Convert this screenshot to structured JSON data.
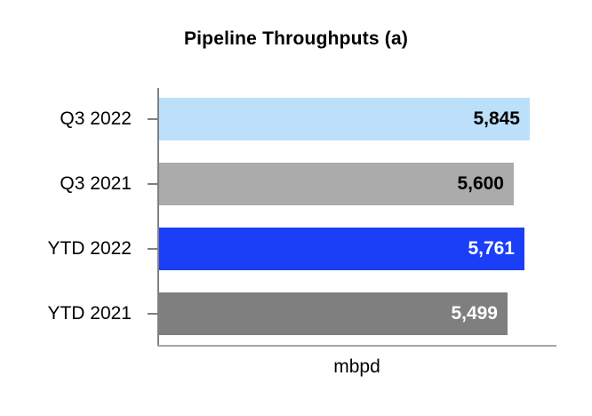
{
  "chart_data": {
    "type": "bar",
    "orientation": "horizontal",
    "title": "Pipeline Throughputs (a)",
    "categories": [
      "Q3 2022",
      "Q3 2021",
      "YTD 2022",
      "YTD 2021"
    ],
    "values": [
      5845,
      5600,
      5761,
      5499
    ],
    "value_labels": [
      "5,845",
      "5,600",
      "5,761",
      "5,499"
    ],
    "bar_colors": [
      "#BDE0FA",
      "#ABABAB",
      "#1B3EF7",
      "#7F7F7F"
    ],
    "value_label_colors": [
      "#000000",
      "#000000",
      "#FFFFFF",
      "#FFFFFF"
    ],
    "xlabel": "mbpd",
    "ylabel": "",
    "xlim": [
      0,
      6280
    ],
    "grid": false,
    "legend": false,
    "axis_line_color": "#808080",
    "baseline_color": "#A6A6A6",
    "background_color": "#FFFFFF"
  }
}
